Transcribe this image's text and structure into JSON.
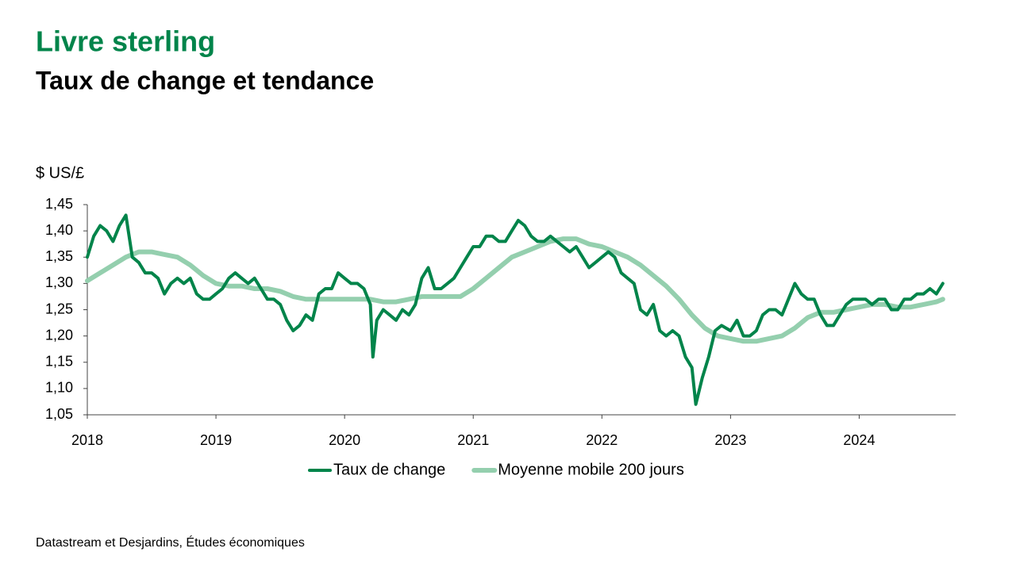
{
  "title": "Livre sterling",
  "subtitle": "Taux de change et tendance",
  "source": "Datastream et Desjardins, Études économiques",
  "chart_data": {
    "type": "line",
    "y_axis_label": "$ US/£",
    "xlim": [
      2018,
      2024.75
    ],
    "xticks": [
      2018,
      2019,
      2020,
      2021,
      2022,
      2023,
      2024
    ],
    "ylim": [
      1.05,
      1.45
    ],
    "yticks": [
      {
        "value": 1.05,
        "label": "1,05"
      },
      {
        "value": 1.1,
        "label": "1,10"
      },
      {
        "value": 1.15,
        "label": "1,15"
      },
      {
        "value": 1.2,
        "label": "1,20"
      },
      {
        "value": 1.25,
        "label": "1,25"
      },
      {
        "value": 1.3,
        "label": "1,30"
      },
      {
        "value": 1.35,
        "label": "1,35"
      },
      {
        "value": 1.4,
        "label": "1,40"
      },
      {
        "value": 1.45,
        "label": "1,45"
      }
    ],
    "grid": false,
    "series": [
      {
        "name": "Taux de change",
        "color": "#00844a",
        "width": 4,
        "x": [
          2018.0,
          2018.05,
          2018.1,
          2018.15,
          2018.2,
          2018.25,
          2018.3,
          2018.35,
          2018.4,
          2018.45,
          2018.5,
          2018.55,
          2018.6,
          2018.65,
          2018.7,
          2018.75,
          2018.8,
          2018.85,
          2018.9,
          2018.95,
          2019.0,
          2019.05,
          2019.1,
          2019.15,
          2019.2,
          2019.25,
          2019.3,
          2019.35,
          2019.4,
          2019.45,
          2019.5,
          2019.55,
          2019.6,
          2019.65,
          2019.7,
          2019.75,
          2019.8,
          2019.85,
          2019.9,
          2019.95,
          2020.0,
          2020.05,
          2020.1,
          2020.15,
          2020.2,
          2020.22,
          2020.25,
          2020.3,
          2020.35,
          2020.4,
          2020.45,
          2020.5,
          2020.55,
          2020.6,
          2020.65,
          2020.7,
          2020.75,
          2020.8,
          2020.85,
          2020.9,
          2020.95,
          2021.0,
          2021.05,
          2021.1,
          2021.15,
          2021.2,
          2021.25,
          2021.3,
          2021.35,
          2021.4,
          2021.45,
          2021.5,
          2021.55,
          2021.6,
          2021.65,
          2021.7,
          2021.75,
          2021.8,
          2021.85,
          2021.9,
          2021.95,
          2022.0,
          2022.05,
          2022.1,
          2022.15,
          2022.2,
          2022.25,
          2022.3,
          2022.35,
          2022.4,
          2022.45,
          2022.5,
          2022.55,
          2022.6,
          2022.65,
          2022.7,
          2022.73,
          2022.78,
          2022.83,
          2022.88,
          2022.93,
          2023.0,
          2023.05,
          2023.1,
          2023.15,
          2023.2,
          2023.25,
          2023.3,
          2023.35,
          2023.4,
          2023.45,
          2023.5,
          2023.55,
          2023.6,
          2023.65,
          2023.7,
          2023.75,
          2023.8,
          2023.85,
          2023.9,
          2023.95,
          2024.0,
          2024.05,
          2024.1,
          2024.15,
          2024.2,
          2024.25,
          2024.3,
          2024.35,
          2024.4,
          2024.45,
          2024.5,
          2024.55,
          2024.6,
          2024.65
        ],
        "values": [
          1.35,
          1.39,
          1.41,
          1.4,
          1.38,
          1.41,
          1.43,
          1.35,
          1.34,
          1.32,
          1.32,
          1.31,
          1.28,
          1.3,
          1.31,
          1.3,
          1.31,
          1.28,
          1.27,
          1.27,
          1.28,
          1.29,
          1.31,
          1.32,
          1.31,
          1.3,
          1.31,
          1.29,
          1.27,
          1.27,
          1.26,
          1.23,
          1.21,
          1.22,
          1.24,
          1.23,
          1.28,
          1.29,
          1.29,
          1.32,
          1.31,
          1.3,
          1.3,
          1.29,
          1.26,
          1.16,
          1.23,
          1.25,
          1.24,
          1.23,
          1.25,
          1.24,
          1.26,
          1.31,
          1.33,
          1.29,
          1.29,
          1.3,
          1.31,
          1.33,
          1.35,
          1.37,
          1.37,
          1.39,
          1.39,
          1.38,
          1.38,
          1.4,
          1.42,
          1.41,
          1.39,
          1.38,
          1.38,
          1.39,
          1.38,
          1.37,
          1.36,
          1.37,
          1.35,
          1.33,
          1.34,
          1.35,
          1.36,
          1.35,
          1.32,
          1.31,
          1.3,
          1.25,
          1.24,
          1.26,
          1.21,
          1.2,
          1.21,
          1.2,
          1.16,
          1.14,
          1.07,
          1.12,
          1.16,
          1.21,
          1.22,
          1.21,
          1.23,
          1.2,
          1.2,
          1.21,
          1.24,
          1.25,
          1.25,
          1.24,
          1.27,
          1.3,
          1.28,
          1.27,
          1.27,
          1.24,
          1.22,
          1.22,
          1.24,
          1.26,
          1.27,
          1.27,
          1.27,
          1.26,
          1.27,
          1.27,
          1.25,
          1.25,
          1.27,
          1.27,
          1.28,
          1.28,
          1.29,
          1.28,
          1.3
        ]
      },
      {
        "name": "Moyenne mobile 200 jours",
        "color": "#94cfae",
        "width": 6,
        "x": [
          2018.0,
          2018.1,
          2018.2,
          2018.3,
          2018.4,
          2018.5,
          2018.6,
          2018.7,
          2018.8,
          2018.9,
          2019.0,
          2019.1,
          2019.2,
          2019.3,
          2019.4,
          2019.5,
          2019.6,
          2019.7,
          2019.8,
          2019.9,
          2020.0,
          2020.1,
          2020.2,
          2020.3,
          2020.4,
          2020.5,
          2020.6,
          2020.7,
          2020.8,
          2020.9,
          2021.0,
          2021.1,
          2021.2,
          2021.3,
          2021.4,
          2021.5,
          2021.6,
          2021.7,
          2021.8,
          2021.9,
          2022.0,
          2022.1,
          2022.2,
          2022.3,
          2022.4,
          2022.5,
          2022.6,
          2022.7,
          2022.8,
          2022.9,
          2023.0,
          2023.1,
          2023.2,
          2023.3,
          2023.4,
          2023.5,
          2023.6,
          2023.7,
          2023.8,
          2023.9,
          2024.0,
          2024.1,
          2024.2,
          2024.3,
          2024.4,
          2024.5,
          2024.6,
          2024.65
        ],
        "values": [
          1.305,
          1.32,
          1.335,
          1.35,
          1.36,
          1.36,
          1.355,
          1.35,
          1.335,
          1.315,
          1.3,
          1.295,
          1.295,
          1.29,
          1.29,
          1.285,
          1.275,
          1.27,
          1.27,
          1.27,
          1.27,
          1.27,
          1.27,
          1.265,
          1.265,
          1.27,
          1.275,
          1.275,
          1.275,
          1.275,
          1.29,
          1.31,
          1.33,
          1.35,
          1.36,
          1.37,
          1.38,
          1.385,
          1.385,
          1.375,
          1.37,
          1.36,
          1.35,
          1.335,
          1.315,
          1.295,
          1.27,
          1.24,
          1.215,
          1.2,
          1.195,
          1.19,
          1.19,
          1.195,
          1.2,
          1.215,
          1.235,
          1.245,
          1.245,
          1.25,
          1.255,
          1.26,
          1.26,
          1.255,
          1.255,
          1.26,
          1.265,
          1.27
        ]
      }
    ]
  }
}
